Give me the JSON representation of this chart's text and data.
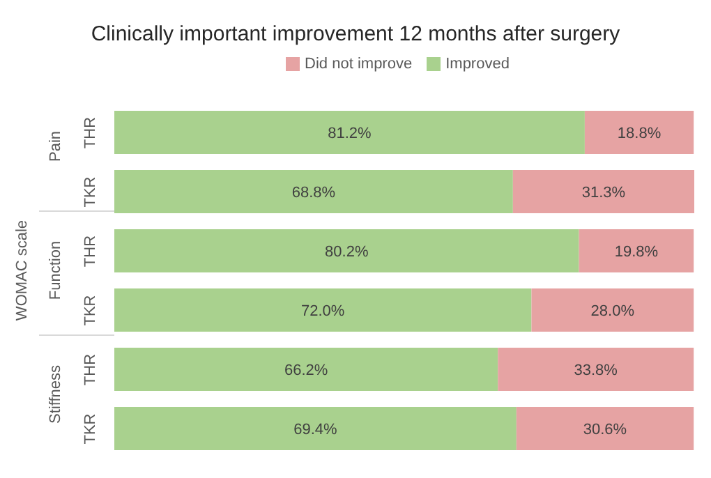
{
  "chart_data": {
    "type": "bar",
    "orientation": "horizontal",
    "stacked": true,
    "title": "Clinically important improvement 12 months after surgery",
    "ylabel": "WOMAC scale",
    "categories": [
      "THR",
      "TKR",
      "THR",
      "TKR",
      "THR",
      "TKR"
    ],
    "annotations": [
      "Pain",
      "Function",
      "Stiffness"
    ],
    "series": [
      {
        "name": "Improved",
        "color": "#a9d18e",
        "values": [
          81.2,
          68.8,
          80.2,
          72.0,
          66.2,
          69.4
        ],
        "value_labels": [
          "81.2%",
          "68.8%",
          "80.2%",
          "72.0%",
          "66.2%",
          "69.4%"
        ]
      },
      {
        "name": "Did not improve",
        "color": "#e6a3a3",
        "values": [
          18.8,
          31.3,
          19.8,
          28.0,
          33.8,
          30.6
        ],
        "value_labels": [
          "18.8%",
          "31.3%",
          "19.8%",
          "28.0%",
          "33.8%",
          "30.6%"
        ]
      }
    ],
    "legend": "top",
    "grid": false
  }
}
